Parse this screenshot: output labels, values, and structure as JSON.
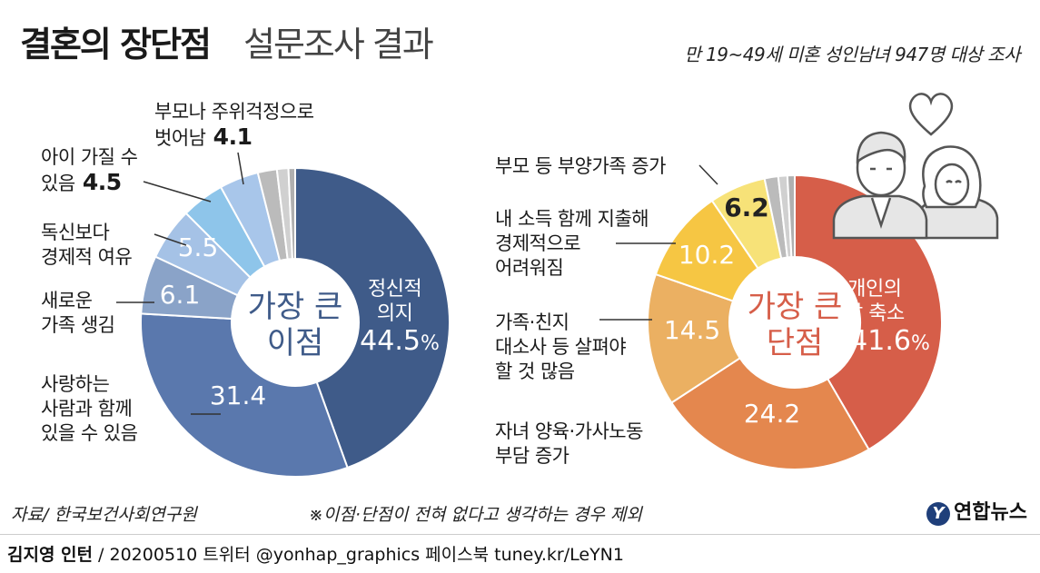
{
  "title": {
    "bold": "결혼의 장단점",
    "light": "설문조사 결과"
  },
  "subtitle": "만 19~49세 미혼 성인남녀 947명 대상 조사",
  "chart_data": [
    {
      "type": "pie",
      "center_label": [
        "가장 큰",
        "이점"
      ],
      "slices": [
        {
          "label": "정신적\n의지",
          "value": 44.5,
          "value_text": "44.5",
          "unit": "%",
          "color": "#3f5b89"
        },
        {
          "label": "사랑하는\n사람과 함께\n있을 수 있음",
          "value": 31.4,
          "value_text": "31.4",
          "color": "#5a78ad"
        },
        {
          "label": "새로운\n가족 생김",
          "value": 6.1,
          "value_text": "6.1",
          "color": "#8aa3c8"
        },
        {
          "label": "독신보다\n경제적 여유",
          "value": 5.5,
          "value_text": "5.5",
          "color": "#a5c2e6"
        },
        {
          "label": "아이 가질 수\n있음",
          "value": 4.5,
          "value_text": "4.5",
          "color": "#8ec5ea"
        },
        {
          "label": "부모나 주위걱정으로\n벗어남",
          "value": 4.1,
          "value_text": "4.1",
          "color": "#a8c6ea"
        },
        {
          "value": 2.0,
          "color": "#bbbbbb"
        },
        {
          "value": 1.2,
          "color": "#d0d0d0"
        },
        {
          "value": 0.7,
          "color": "#b0b0b0"
        }
      ]
    },
    {
      "type": "pie",
      "center_label": [
        "가장 큰",
        "단점"
      ],
      "slices": [
        {
          "label": "개인의\n삶 축소",
          "value": 41.6,
          "value_text": "41.6",
          "unit": "%",
          "color": "#d65e49"
        },
        {
          "label": "자녀 양육·가사노동\n부담 증가",
          "value": 24.2,
          "value_text": "24.2",
          "color": "#e4874e"
        },
        {
          "label": "가족·친지\n대소사 등 살펴야\n할 것 많음",
          "value": 14.5,
          "value_text": "14.5",
          "color": "#ebb062"
        },
        {
          "label": "내 소득 함께 지출해\n경제적으로\n어려워짐",
          "value": 10.2,
          "value_text": "10.2",
          "color": "#f6c643"
        },
        {
          "label": "부모 등 부양가족 증가",
          "value": 6.2,
          "value_text": "6.2",
          "color": "#f7e278"
        },
        {
          "value": 1.5,
          "color": "#bbbbbb"
        },
        {
          "value": 1.0,
          "color": "#d0d0d0"
        },
        {
          "value": 0.8,
          "color": "#b0b0b0"
        }
      ]
    }
  ],
  "source": "자료/ 한국보건사회연구원",
  "footnote": "※이점·단점이 전혀 없다고 생각하는 경우 제외",
  "credit": {
    "author": "김지영 인턴",
    "text": " / 20200510 트위터 @yonhap_graphics 페이스북 tuney.kr/LeYN1"
  },
  "logo": {
    "mark": "Y",
    "text": "연합뉴스"
  },
  "icons": [
    "heart-icon",
    "couple-illustration"
  ]
}
